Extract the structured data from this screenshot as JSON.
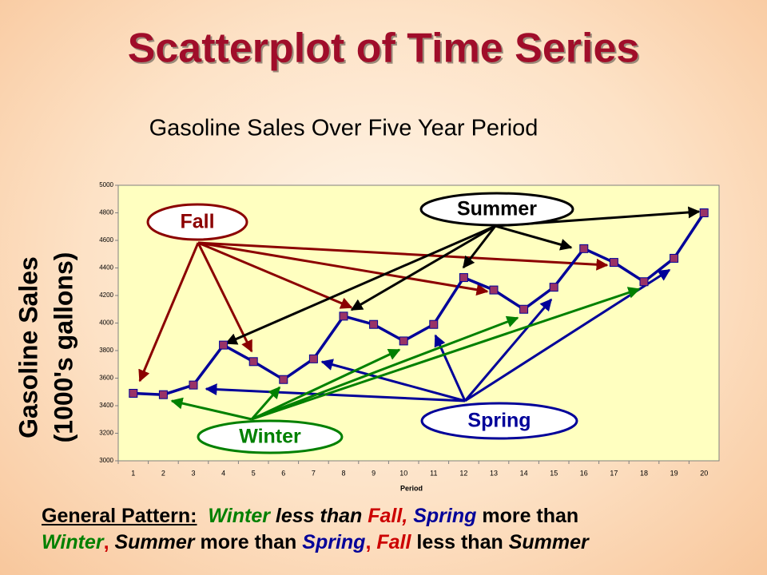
{
  "slide_title": "Scatterplot of Time Series",
  "chart_data": {
    "type": "line",
    "title": "Gasoline Sales Over Five Year Period",
    "x_label": "Period",
    "y_label": [
      "Gasoline Sales",
      "(1000's gallons)"
    ],
    "categories": [
      "1",
      "2",
      "3",
      "4",
      "5",
      "6",
      "7",
      "8",
      "9",
      "10",
      "11",
      "12",
      "13",
      "14",
      "15",
      "16",
      "17",
      "18",
      "19",
      "20"
    ],
    "series": [
      {
        "name": "Gasoline Sales",
        "color": "#000099",
        "marker_color": "#993366",
        "values": [
          3490,
          3480,
          3550,
          3840,
          3720,
          3590,
          3740,
          4050,
          3990,
          3870,
          3990,
          4330,
          4240,
          4100,
          4260,
          4540,
          4440,
          4300,
          4470,
          4800
        ]
      }
    ],
    "ylim": [
      3000,
      5000
    ],
    "yticks": [
      3000,
      3200,
      3400,
      3600,
      3800,
      4000,
      4200,
      4400,
      4600,
      4800,
      5000
    ],
    "annotations": [
      {
        "text": "Fall",
        "color": "#8b0000"
      },
      {
        "text": "Summer",
        "color": "#000000"
      },
      {
        "text": "Spring",
        "color": "#000099"
      },
      {
        "text": "Winter",
        "color": "#008000"
      }
    ]
  },
  "footer": {
    "heading": "General Pattern:",
    "lines": [
      [
        {
          "text": "Winter",
          "color": "#008000",
          "italic": true
        },
        {
          "text": " less than ",
          "color": "#000000",
          "italic": true
        },
        {
          "text": "Fall, ",
          "color": "#cc0000",
          "italic": true
        },
        {
          "text": "Spring",
          "color": "#000099",
          "italic": true
        },
        {
          "text": " more than",
          "color": "#000000",
          "italic": false
        }
      ],
      [
        {
          "text": "Winter",
          "color": "#008000",
          "italic": true
        },
        {
          "text": ", ",
          "color": "#cc0000",
          "italic": false
        },
        {
          "text": "Summer",
          "color": "#000000",
          "italic": true
        },
        {
          "text": " more than ",
          "color": "#000000",
          "italic": false
        },
        {
          "text": "Spring",
          "color": "#000099",
          "italic": true
        },
        {
          "text": ", ",
          "color": "#cc0000",
          "italic": false
        },
        {
          "text": "Fall",
          "color": "#cc0000",
          "italic": true
        },
        {
          "text": " less than ",
          "color": "#000000",
          "italic": false
        },
        {
          "text": "Summer",
          "color": "#000000",
          "italic": true
        }
      ]
    ]
  }
}
